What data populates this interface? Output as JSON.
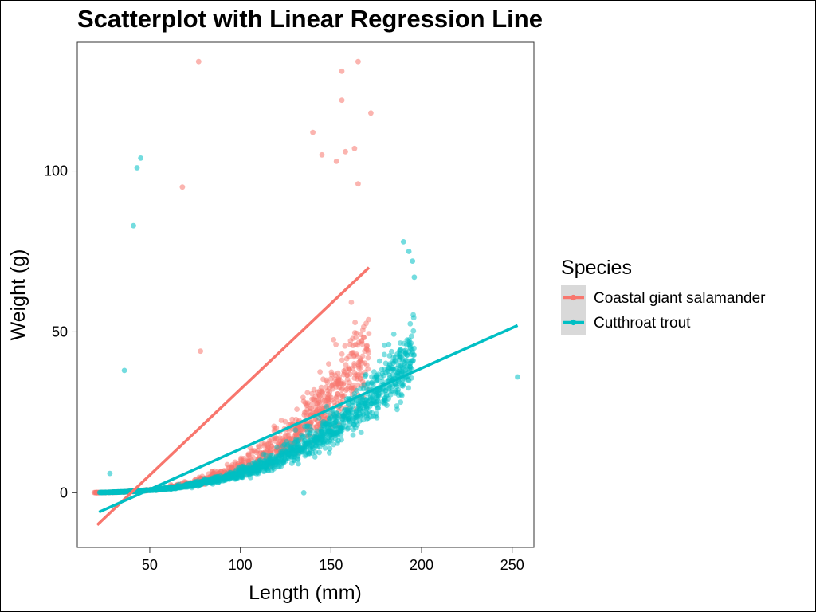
{
  "chart_data": {
    "type": "scatter",
    "title": "Scatterplot with Linear Regression Line",
    "xlabel": "Length (mm)",
    "ylabel": "Weight (g)",
    "xlim": [
      10,
      262
    ],
    "ylim": [
      -17,
      140
    ],
    "x_ticks": [
      50,
      100,
      150,
      200,
      250
    ],
    "y_ticks": [
      0,
      50,
      100
    ],
    "grid": false,
    "legend": {
      "title": "Species",
      "placement": "right"
    },
    "series": [
      {
        "name": "Coastal giant salamander",
        "color": "#F8766D",
        "trend": {
          "kind": "power",
          "a": 2.5e-06,
          "b": 3.25,
          "x_min": 19,
          "x_max": 171,
          "noise": 0.16,
          "count": 1000
        },
        "outliers": [
          {
            "x": 77,
            "y": 134
          },
          {
            "x": 68,
            "y": 95
          },
          {
            "x": 78,
            "y": 44
          },
          {
            "x": 156,
            "y": 131
          },
          {
            "x": 165,
            "y": 134
          },
          {
            "x": 156,
            "y": 122
          },
          {
            "x": 172,
            "y": 118
          },
          {
            "x": 140,
            "y": 112
          },
          {
            "x": 153,
            "y": 103
          },
          {
            "x": 158,
            "y": 106
          },
          {
            "x": 163,
            "y": 107
          },
          {
            "x": 165,
            "y": 96
          },
          {
            "x": 145,
            "y": 105
          }
        ],
        "regression": [
          [
            21,
            -10
          ],
          [
            171,
            70
          ]
        ]
      },
      {
        "name": "Cutthroat trout",
        "color": "#00BFC4",
        "trend": {
          "kind": "power",
          "a": 9.5e-06,
          "b": 2.9,
          "x_min": 22,
          "x_max": 196,
          "noise": 0.13,
          "count": 1500
        },
        "outliers": [
          {
            "x": 43,
            "y": 101
          },
          {
            "x": 45,
            "y": 104
          },
          {
            "x": 41,
            "y": 83
          },
          {
            "x": 36,
            "y": 38
          },
          {
            "x": 253,
            "y": 36
          },
          {
            "x": 135,
            "y": 0
          },
          {
            "x": 28,
            "y": 6
          },
          {
            "x": 132,
            "y": 9
          },
          {
            "x": 190,
            "y": 78
          },
          {
            "x": 193,
            "y": 75
          },
          {
            "x": 195,
            "y": 72
          },
          {
            "x": 196,
            "y": 67
          }
        ],
        "regression": [
          [
            22,
            -6
          ],
          [
            253,
            52
          ]
        ]
      }
    ]
  }
}
